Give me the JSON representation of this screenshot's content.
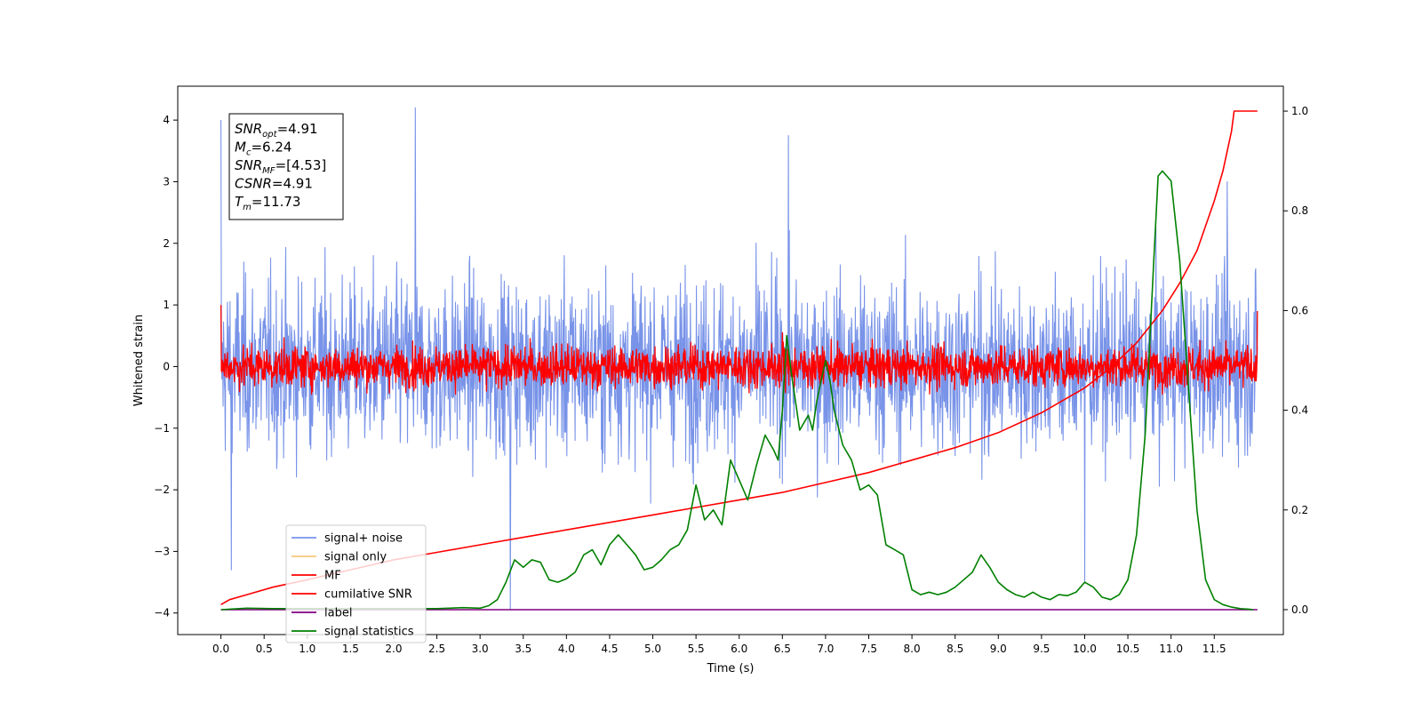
{
  "chart_data": {
    "type": "line",
    "xlabel": "Time (s)",
    "ylabel_left": "Whitened strain",
    "ylabel_right": "",
    "xlim": [
      -0.5,
      12.3
    ],
    "ylim_left": [
      -4.35,
      4.55
    ],
    "ylim_right": [
      -0.05,
      1.05
    ],
    "x_ticks": [
      0.0,
      0.5,
      1.0,
      1.5,
      2.0,
      2.5,
      3.0,
      3.5,
      4.0,
      4.5,
      5.0,
      5.5,
      6.0,
      6.5,
      7.0,
      7.5,
      8.0,
      8.5,
      9.0,
      9.5,
      10.0,
      10.5,
      11.0,
      11.5
    ],
    "x_tick_labels": [
      "0.0",
      "0.5",
      "1.0",
      "1.5",
      "2.0",
      "2.5",
      "3.0",
      "3.5",
      "4.0",
      "4.5",
      "5.0",
      "5.5",
      "6.0",
      "6.5",
      "7.0",
      "7.5",
      "8.0",
      "8.5",
      "9.0",
      "9.5",
      "10.0",
      "10.5",
      "11.0",
      "11.5"
    ],
    "y_left_ticks": [
      -4,
      -3,
      -2,
      -1,
      0,
      1,
      2,
      3,
      4
    ],
    "y_left_tick_labels": [
      "−4",
      "−3",
      "−2",
      "−1",
      "0",
      "1",
      "2",
      "3",
      "4"
    ],
    "y_right_ticks": [
      0.0,
      0.2,
      0.4,
      0.6,
      0.8,
      1.0
    ],
    "y_right_tick_labels": [
      "0.0",
      "0.2",
      "0.4",
      "0.6",
      "0.8",
      "1.0"
    ],
    "annotation": {
      "lines": [
        {
          "base": "SNR",
          "sub": "opt",
          "rest": "=4.91"
        },
        {
          "base": "M",
          "sub": "c",
          "rest": "=6.24"
        },
        {
          "base": "SNR",
          "sub": "MF",
          "rest": "=[4.53]"
        },
        {
          "base": "CSNR",
          "sub": "",
          "rest": "=4.91"
        },
        {
          "base": "T",
          "sub": "m",
          "rest": "=11.73"
        }
      ]
    },
    "legend": {
      "position": "lower-left",
      "entries": [
        {
          "label": "signal+ noise",
          "color": "#7893e8"
        },
        {
          "label": "signal only",
          "color": "#f5c878"
        },
        {
          "label": "MF",
          "color": "#ff0000"
        },
        {
          "label": "cumilative SNR",
          "color": "#ff0000"
        },
        {
          "label": "label",
          "color": "#800080"
        },
        {
          "label": "signal statistics",
          "color": "#008000"
        }
      ]
    },
    "series": [
      {
        "name": "signal+ noise",
        "axis": "left",
        "color": "#7893e8",
        "kind": "noise",
        "x_range": [
          0.0,
          12.0
        ],
        "band": {
          "center": 0.0,
          "typical_low": -1.8,
          "typical_high": 1.8,
          "min": -3.95,
          "max": 4.2
        },
        "notable_peaks": [
          {
            "x": 0.0,
            "y": 4.0
          },
          {
            "x": 2.25,
            "y": 4.2
          },
          {
            "x": 6.57,
            "y": 3.75
          },
          {
            "x": 11.65,
            "y": 3.0
          },
          {
            "x": 3.35,
            "y": -3.95
          },
          {
            "x": 0.12,
            "y": -3.3
          },
          {
            "x": 10.0,
            "y": -3.5
          }
        ]
      },
      {
        "name": "MF",
        "axis": "left",
        "color": "#ff0000",
        "kind": "noise",
        "x_range": [
          0.0,
          12.0
        ],
        "band": {
          "center": 0.0,
          "typical_low": -0.35,
          "typical_high": 0.5,
          "min": -0.45,
          "max": 1.0
        },
        "notable_peaks": [
          {
            "x": 0.0,
            "y": 1.0
          },
          {
            "x": 6.5,
            "y": 0.55
          },
          {
            "x": 12.0,
            "y": 0.9
          }
        ]
      },
      {
        "name": "cumilative SNR",
        "axis": "right",
        "color": "#ff0000",
        "x": [
          0.0,
          0.1,
          0.3,
          0.6,
          1.0,
          1.5,
          2.0,
          2.5,
          3.0,
          3.5,
          4.0,
          4.5,
          5.0,
          5.5,
          6.0,
          6.5,
          7.0,
          7.5,
          8.0,
          8.5,
          9.0,
          9.5,
          10.0,
          10.3,
          10.6,
          10.9,
          11.1,
          11.3,
          11.5,
          11.6,
          11.7,
          11.73,
          11.8,
          12.0
        ],
        "y": [
          0.01,
          0.02,
          0.03,
          0.045,
          0.06,
          0.08,
          0.1,
          0.115,
          0.13,
          0.145,
          0.16,
          0.175,
          0.19,
          0.205,
          0.22,
          0.235,
          0.255,
          0.275,
          0.3,
          0.325,
          0.355,
          0.395,
          0.445,
          0.485,
          0.535,
          0.6,
          0.655,
          0.72,
          0.82,
          0.88,
          0.96,
          1.0,
          1.0,
          1.0
        ]
      },
      {
        "name": "label",
        "axis": "right",
        "color": "#800080",
        "x": [
          0.0,
          12.0
        ],
        "y": [
          0.0,
          0.0
        ]
      },
      {
        "name": "signal statistics",
        "axis": "right",
        "color": "#008000",
        "x": [
          0.0,
          0.3,
          0.6,
          1.0,
          1.5,
          2.0,
          2.5,
          2.8,
          3.0,
          3.1,
          3.2,
          3.3,
          3.4,
          3.5,
          3.6,
          3.7,
          3.8,
          3.9,
          4.0,
          4.1,
          4.2,
          4.3,
          4.4,
          4.5,
          4.6,
          4.7,
          4.8,
          4.9,
          5.0,
          5.1,
          5.2,
          5.3,
          5.4,
          5.5,
          5.6,
          5.7,
          5.8,
          5.9,
          6.0,
          6.1,
          6.2,
          6.3,
          6.4,
          6.45,
          6.5,
          6.55,
          6.6,
          6.7,
          6.8,
          6.85,
          6.9,
          7.0,
          7.05,
          7.1,
          7.2,
          7.3,
          7.4,
          7.5,
          7.6,
          7.7,
          7.8,
          7.9,
          8.0,
          8.1,
          8.2,
          8.3,
          8.4,
          8.5,
          8.6,
          8.7,
          8.8,
          8.9,
          9.0,
          9.1,
          9.2,
          9.3,
          9.4,
          9.5,
          9.6,
          9.7,
          9.8,
          9.9,
          10.0,
          10.1,
          10.2,
          10.3,
          10.4,
          10.5,
          10.6,
          10.7,
          10.8,
          10.85,
          10.9,
          11.0,
          11.1,
          11.2,
          11.3,
          11.4,
          11.5,
          11.6,
          11.7,
          11.8,
          11.9,
          11.95
        ],
        "y": [
          0.0,
          0.003,
          0.002,
          0.002,
          0.002,
          0.002,
          0.002,
          0.004,
          0.003,
          0.008,
          0.02,
          0.055,
          0.1,
          0.085,
          0.1,
          0.095,
          0.06,
          0.055,
          0.062,
          0.075,
          0.11,
          0.12,
          0.09,
          0.13,
          0.15,
          0.13,
          0.11,
          0.08,
          0.085,
          0.1,
          0.12,
          0.13,
          0.16,
          0.25,
          0.18,
          0.2,
          0.17,
          0.3,
          0.26,
          0.22,
          0.29,
          0.35,
          0.32,
          0.3,
          0.4,
          0.55,
          0.48,
          0.36,
          0.39,
          0.36,
          0.42,
          0.5,
          0.46,
          0.4,
          0.33,
          0.3,
          0.24,
          0.25,
          0.23,
          0.13,
          0.12,
          0.11,
          0.04,
          0.03,
          0.035,
          0.03,
          0.035,
          0.045,
          0.06,
          0.075,
          0.11,
          0.085,
          0.055,
          0.04,
          0.03,
          0.025,
          0.035,
          0.025,
          0.02,
          0.03,
          0.028,
          0.035,
          0.055,
          0.045,
          0.025,
          0.02,
          0.03,
          0.06,
          0.15,
          0.35,
          0.7,
          0.87,
          0.88,
          0.86,
          0.7,
          0.45,
          0.2,
          0.06,
          0.02,
          0.01,
          0.005,
          0.002,
          0.001,
          0.0
        ]
      }
    ]
  }
}
